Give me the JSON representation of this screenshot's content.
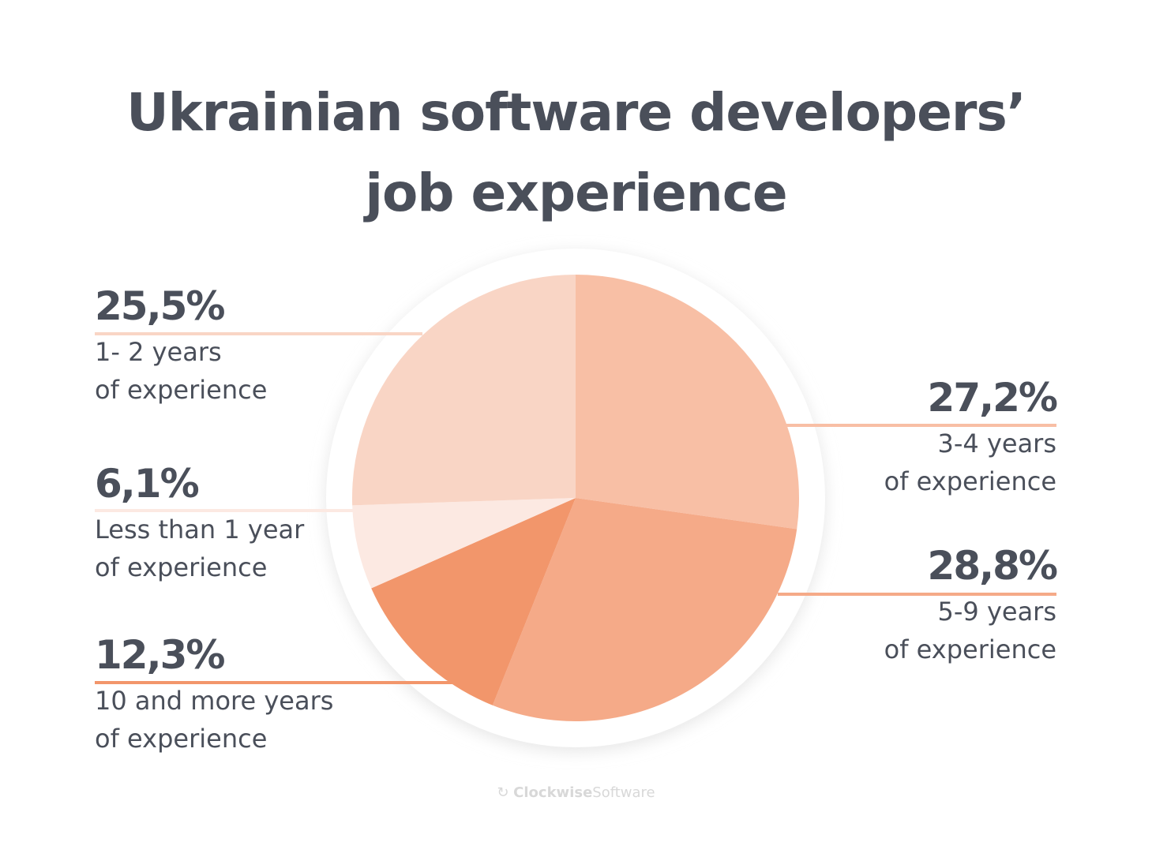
{
  "chart_data": {
    "type": "pie",
    "title": "Ukrainian software developers’ job experience",
    "title_lines": [
      "Ukrainian software developers’",
      "job experience"
    ],
    "slices": [
      {
        "label_line1": "3-4 years",
        "label_line2": "of experience",
        "value": 27.2,
        "value_label": "27,2%",
        "color": "#f8bfa5"
      },
      {
        "label_line1": "5-9 years",
        "label_line2": "of experience",
        "value": 28.8,
        "value_label": "28,8%",
        "color": "#f5aa88"
      },
      {
        "label_line1": "10 and more years",
        "label_line2": "of experience",
        "value": 12.3,
        "value_label": "12,3%",
        "color": "#f2966b"
      },
      {
        "label_line1": "Less than 1 year",
        "label_line2": "of experience",
        "value": 6.1,
        "value_label": "6,1%",
        "color": "#fce9e2"
      },
      {
        "label_line1": "1- 2  years",
        "label_line2": "of experience",
        "value": 25.5,
        "value_label": "25,5%",
        "color": "#f9d5c5"
      }
    ]
  },
  "footer": {
    "brand_bold": "Clockwise",
    "brand_light": "Software"
  }
}
